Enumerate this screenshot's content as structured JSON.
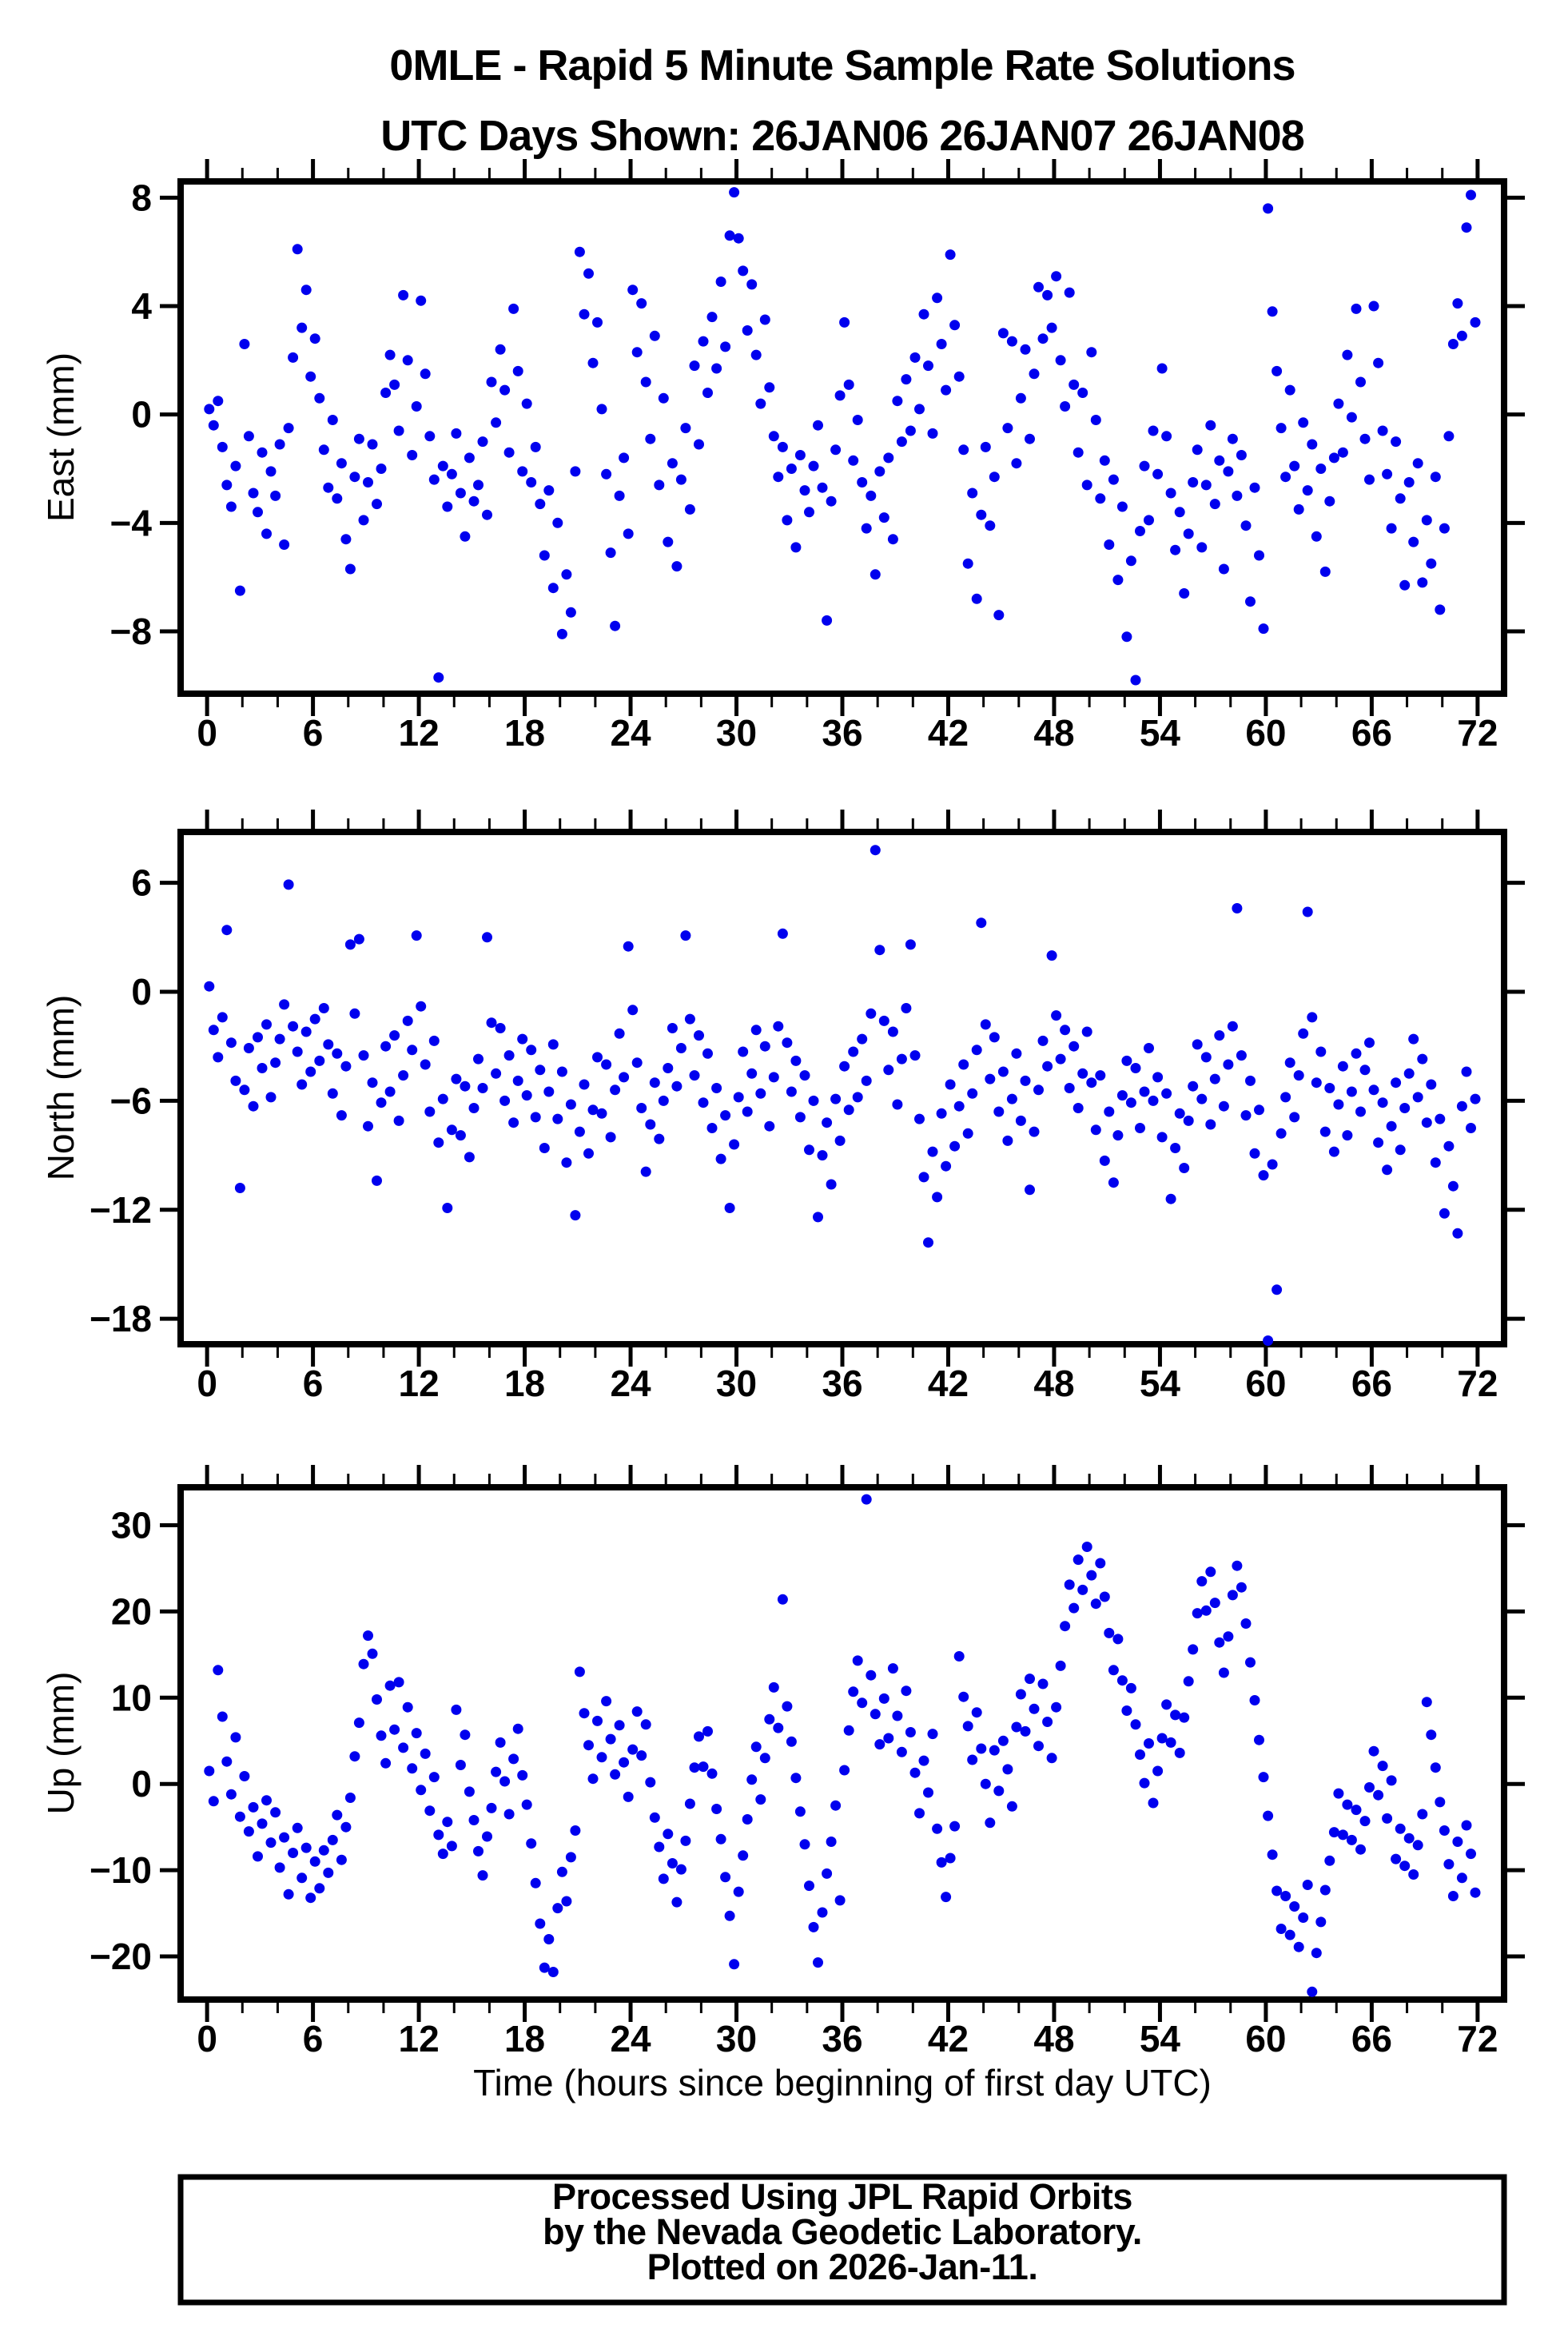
{
  "chart_data": {
    "type": "scatter",
    "title": "0MLE - Rapid 5 Minute Sample Rate Solutions",
    "subtitle": "UTC Days Shown:  26JAN06 26JAN07 26JAN08",
    "xlabel": "Time (hours since beginning of first day UTC)",
    "marker": {
      "color": "#0000EE",
      "radius_px": 6.5
    },
    "grid": false,
    "legend": false,
    "x_axis": {
      "min": 0,
      "max": 72,
      "display_min": -1.5,
      "display_max": 73.5,
      "major_step": 6,
      "minor_step": 2,
      "tick_labels": [
        0,
        6,
        12,
        18,
        24,
        30,
        36,
        42,
        48,
        54,
        60,
        66,
        72
      ]
    },
    "panels": [
      {
        "id": "east",
        "ylabel": "East (mm)",
        "ylim": [
          -10.3,
          8.6
        ],
        "yticks": [
          8,
          4,
          0,
          -4,
          -8
        ],
        "t_start": 0.12,
        "t_step": 0.25,
        "values": [
          0.2,
          -0.4,
          0.5,
          -1.2,
          -2.6,
          -3.4,
          -1.9,
          -6.5,
          2.6,
          -0.8,
          -2.9,
          -3.6,
          -1.4,
          -4.4,
          -2.1,
          -3.0,
          -1.1,
          -4.8,
          -0.5,
          2.1,
          6.1,
          3.2,
          4.6,
          1.4,
          2.8,
          0.6,
          -1.3,
          -2.7,
          -0.2,
          -3.1,
          -1.8,
          -4.6,
          -5.7,
          -2.3,
          -0.9,
          -3.9,
          -2.5,
          -1.1,
          -3.3,
          -2.0,
          0.8,
          2.2,
          1.1,
          -0.6,
          4.4,
          2.0,
          -1.5,
          0.3,
          4.2,
          1.5,
          -0.8,
          -2.4,
          -9.7,
          -1.9,
          -3.4,
          -2.2,
          -0.7,
          -2.9,
          -4.5,
          -1.6,
          -3.2,
          -2.6,
          -1.0,
          -3.7,
          1.2,
          -0.3,
          2.4,
          0.9,
          -1.4,
          3.9,
          1.6,
          -2.1,
          0.4,
          -2.5,
          -1.2,
          -3.3,
          -5.2,
          -2.8,
          -6.4,
          -4.0,
          -8.1,
          -5.9,
          -7.3,
          -2.1,
          6.0,
          3.7,
          5.2,
          1.9,
          3.4,
          0.2,
          -2.2,
          -5.1,
          -7.8,
          -3.0,
          -1.6,
          -4.4,
          4.6,
          2.3,
          4.1,
          1.2,
          -0.9,
          2.9,
          -2.6,
          0.6,
          -4.7,
          -1.8,
          -5.6,
          -2.4,
          -0.5,
          -3.5,
          1.8,
          -1.1,
          2.7,
          0.8,
          3.6,
          1.7,
          4.9,
          2.5,
          6.6,
          8.2,
          6.5,
          5.3,
          3.1,
          4.8,
          2.2,
          0.4,
          3.5,
          1.0,
          -0.8,
          -2.3,
          -1.2,
          -3.9,
          -2.0,
          -4.9,
          -1.5,
          -2.8,
          -3.6,
          -1.9,
          -0.4,
          -2.7,
          -7.6,
          -3.2,
          -1.3,
          0.7,
          3.4,
          1.1,
          -1.7,
          -0.2,
          -2.5,
          -4.2,
          -3.0,
          -5.9,
          -2.1,
          -3.8,
          -1.6,
          -4.6,
          0.5,
          -1.0,
          1.3,
          -0.6,
          2.1,
          0.2,
          3.7,
          1.8,
          -0.7,
          4.3,
          2.6,
          0.9,
          5.9,
          3.3,
          1.4,
          -1.3,
          -5.5,
          -2.9,
          -6.8,
          -3.7,
          -1.2,
          -4.1,
          -2.3,
          -7.4,
          3.0,
          -0.5,
          2.7,
          -1.8,
          0.6,
          2.4,
          -0.9,
          1.5,
          4.7,
          2.8,
          4.4,
          3.2,
          5.1,
          2.0,
          0.3,
          4.5,
          1.1,
          -1.4,
          0.8,
          -2.6,
          2.3,
          -0.2,
          -3.1,
          -1.7,
          -4.8,
          -2.4,
          -6.1,
          -3.4,
          -8.2,
          -5.4,
          -9.8,
          -4.3,
          -1.9,
          -3.9,
          -0.6,
          -2.2,
          1.7,
          -0.8,
          -2.9,
          -5.0,
          -3.6,
          -6.6,
          -4.4,
          -2.5,
          -1.3,
          -4.9,
          -2.6,
          -0.4,
          -3.3,
          -1.7,
          -5.7,
          -2.1,
          -0.9,
          -3.0,
          -1.5,
          -4.1,
          -6.9,
          -2.7,
          -5.2,
          -7.9,
          7.6,
          3.8,
          1.6,
          -0.5,
          -2.3,
          0.9,
          -1.9,
          -3.5,
          -0.3,
          -2.8,
          -1.1,
          -4.5,
          -2.0,
          -5.8,
          -3.2,
          -1.6,
          0.4,
          -1.4,
          2.2,
          -0.1,
          3.9,
          1.2,
          -0.9,
          -2.4,
          4.0,
          1.9,
          -0.6,
          -2.2,
          -4.2,
          -1.0,
          -3.1,
          -6.3,
          -2.5,
          -4.7,
          -1.8,
          -6.2,
          -3.9,
          -5.5,
          -2.3,
          -7.2,
          -4.2,
          -0.8,
          2.6,
          4.1,
          2.9,
          6.9,
          8.1,
          3.4
        ]
      },
      {
        "id": "north",
        "ylabel": "North (mm)",
        "ylim": [
          -19.4,
          8.8
        ],
        "yticks": [
          6,
          0,
          -6,
          -12,
          -18
        ],
        "t_start": 0.12,
        "t_step": 0.25,
        "values": [
          0.3,
          -2.1,
          -3.6,
          -1.4,
          3.4,
          -2.8,
          -4.9,
          -10.8,
          -5.4,
          -3.1,
          -6.3,
          -2.5,
          -4.2,
          -1.8,
          -5.8,
          -3.9,
          -2.6,
          -0.7,
          5.9,
          -1.9,
          -3.3,
          -5.1,
          -2.2,
          -4.4,
          -1.5,
          -3.8,
          -0.9,
          -2.9,
          -5.6,
          -3.4,
          -6.8,
          -4.1,
          2.6,
          -1.2,
          2.9,
          -3.5,
          -7.4,
          -5.0,
          -10.4,
          -6.1,
          -3.0,
          -5.5,
          -2.4,
          -7.1,
          -4.6,
          -1.6,
          -3.2,
          3.1,
          -0.8,
          -4.0,
          -6.6,
          -2.7,
          -8.3,
          -5.9,
          -11.9,
          -7.6,
          -4.8,
          -7.9,
          -5.2,
          -9.1,
          -6.4,
          -3.7,
          -5.3,
          3.0,
          -1.7,
          -4.5,
          -2.0,
          -6.0,
          -3.5,
          -7.2,
          -4.9,
          -2.6,
          -5.7,
          -3.2,
          -6.9,
          -4.3,
          -8.6,
          -5.5,
          -2.9,
          -7.0,
          -4.4,
          -9.4,
          -6.2,
          -12.3,
          -7.7,
          -5.1,
          -8.9,
          -6.5,
          -3.6,
          -6.7,
          -4.0,
          -8.0,
          -5.4,
          -2.3,
          -4.7,
          2.5,
          -1.0,
          -3.9,
          -6.4,
          -9.9,
          -7.3,
          -5.0,
          -8.1,
          -6.0,
          -4.2,
          -2.0,
          -5.2,
          -3.1,
          3.1,
          -1.5,
          -4.6,
          -2.4,
          -6.1,
          -3.4,
          -7.5,
          -5.3,
          -9.2,
          -6.8,
          -11.9,
          -8.4,
          -5.8,
          -3.3,
          -6.6,
          -4.5,
          -2.1,
          -5.6,
          -3.0,
          -7.4,
          -4.7,
          -1.9,
          3.2,
          -2.8,
          -5.5,
          -3.8,
          -6.9,
          -4.6,
          -8.7,
          -6.0,
          -12.4,
          -9.0,
          -7.2,
          -10.6,
          -5.9,
          -8.2,
          -4.1,
          -6.5,
          -3.3,
          -5.8,
          -2.6,
          -4.9,
          -1.2,
          7.8,
          2.3,
          -1.6,
          -4.3,
          -2.2,
          -6.2,
          -3.7,
          -0.9,
          2.6,
          -3.5,
          -7.0,
          -10.2,
          -13.8,
          -8.8,
          -11.3,
          -6.7,
          -9.6,
          -5.1,
          -8.5,
          -6.3,
          -4.0,
          -7.8,
          -5.6,
          -3.2,
          3.8,
          -1.8,
          -4.8,
          -2.5,
          -6.6,
          -4.4,
          -8.2,
          -5.9,
          -3.4,
          -7.1,
          -4.9,
          -10.9,
          -7.7,
          -5.4,
          -2.7,
          -4.1,
          2.0,
          -1.3,
          -3.7,
          -2.1,
          -5.3,
          -3.0,
          -6.4,
          -4.5,
          -2.2,
          -5.0,
          -7.6,
          -4.6,
          -9.3,
          -6.6,
          -10.5,
          -7.9,
          -5.7,
          -3.8,
          -6.1,
          -4.2,
          -7.5,
          -5.5,
          -3.1,
          -6.0,
          -4.7,
          -8.0,
          -5.6,
          -11.4,
          -8.6,
          -6.7,
          -9.7,
          -7.1,
          -5.2,
          -2.9,
          -5.9,
          -3.6,
          -7.3,
          -4.8,
          -2.4,
          -6.3,
          -4.0,
          -1.9,
          4.6,
          -3.5,
          -6.8,
          -4.9,
          -8.9,
          -6.5,
          -10.1,
          -19.2,
          -9.5,
          -16.4,
          -7.8,
          -5.8,
          -3.9,
          -6.9,
          -4.6,
          -2.3,
          4.4,
          -1.4,
          -5.0,
          -3.3,
          -7.7,
          -5.3,
          -8.8,
          -6.2,
          -4.1,
          -7.9,
          -5.5,
          -3.4,
          -6.6,
          -4.3,
          -2.8,
          -5.4,
          -8.3,
          -6.1,
          -9.8,
          -7.4,
          -5.0,
          -8.7,
          -6.4,
          -4.5,
          -2.6,
          -5.8,
          -3.7,
          -7.2,
          -5.1,
          -9.4,
          -7.0,
          -12.2,
          -8.5,
          -10.7,
          -13.3,
          -6.3,
          -4.4,
          -7.5,
          -5.9
        ]
      },
      {
        "id": "up",
        "ylabel": "Up (mm)",
        "ylim": [
          -25.0,
          34.4
        ],
        "yticks": [
          30,
          20,
          10,
          0,
          -10,
          -20
        ],
        "t_start": 0.12,
        "t_step": 0.25,
        "values": [
          1.5,
          -2.0,
          13.2,
          7.8,
          2.6,
          -1.2,
          5.4,
          -3.8,
          0.9,
          -5.5,
          -2.7,
          -8.4,
          -4.6,
          -1.9,
          -6.8,
          -3.3,
          -9.7,
          -6.2,
          -12.8,
          -8.0,
          -5.1,
          -10.9,
          -7.4,
          -13.2,
          -9.0,
          -12.1,
          -7.7,
          -10.3,
          -6.5,
          -3.6,
          -8.8,
          -5.0,
          -1.6,
          3.2,
          7.1,
          13.9,
          17.2,
          15.1,
          9.8,
          5.6,
          2.4,
          11.4,
          6.3,
          11.8,
          4.2,
          8.9,
          1.8,
          5.9,
          -0.7,
          3.5,
          -3.1,
          0.8,
          -5.9,
          -8.1,
          -4.4,
          -7.2,
          8.6,
          2.2,
          5.7,
          -0.9,
          -4.2,
          -7.8,
          -10.6,
          -6.1,
          -2.8,
          1.4,
          4.8,
          0.3,
          -3.5,
          2.9,
          6.4,
          1.0,
          -2.4,
          -6.9,
          -11.5,
          -16.2,
          -21.3,
          -18.0,
          -21.8,
          -14.4,
          -10.2,
          -13.6,
          -8.5,
          -5.4,
          13.0,
          8.2,
          4.5,
          0.6,
          7.3,
          3.1,
          9.6,
          5.2,
          1.1,
          6.8,
          2.5,
          -1.5,
          4.0,
          8.4,
          3.3,
          6.9,
          0.2,
          -3.9,
          -7.3,
          -11.0,
          -5.8,
          -9.2,
          -13.7,
          -9.9,
          -6.6,
          -2.3,
          1.9,
          5.5,
          2.0,
          6.1,
          1.2,
          -2.9,
          -6.4,
          -10.8,
          -15.3,
          -20.9,
          -12.5,
          -8.3,
          -4.1,
          0.5,
          4.3,
          -1.8,
          3.0,
          7.5,
          11.2,
          6.5,
          21.4,
          9.0,
          4.9,
          0.7,
          -3.2,
          -7.0,
          -11.8,
          -16.6,
          -20.7,
          -14.9,
          -10.4,
          -6.7,
          -2.5,
          -13.5,
          1.6,
          6.2,
          10.7,
          14.3,
          9.4,
          33.0,
          12.6,
          8.1,
          4.6,
          9.9,
          5.3,
          13.4,
          7.9,
          3.7,
          10.8,
          6.0,
          1.3,
          -3.4,
          2.7,
          -1.0,
          5.8,
          -5.2,
          -9.1,
          -13.1,
          -8.6,
          -4.9,
          14.8,
          10.1,
          6.7,
          2.8,
          8.3,
          4.1,
          0.0,
          -4.5,
          3.9,
          -0.8,
          5.0,
          1.7,
          -2.6,
          6.6,
          10.4,
          6.1,
          12.2,
          8.7,
          4.4,
          11.6,
          7.2,
          3.0,
          8.9,
          13.7,
          18.3,
          23.1,
          20.4,
          26.0,
          22.5,
          27.5,
          24.2,
          20.9,
          25.6,
          21.7,
          17.5,
          13.2,
          16.8,
          12.0,
          8.5,
          11.1,
          6.9,
          3.4,
          0.1,
          4.7,
          -2.2,
          1.5,
          5.3,
          9.2,
          4.8,
          8.0,
          3.6,
          7.7,
          11.9,
          15.6,
          19.8,
          23.5,
          20.1,
          24.6,
          21.0,
          16.4,
          12.9,
          17.1,
          21.9,
          25.3,
          22.8,
          18.6,
          14.1,
          9.7,
          5.1,
          0.8,
          -3.7,
          -8.2,
          -12.4,
          -16.8,
          -13.0,
          -17.5,
          -14.2,
          -18.9,
          -15.5,
          -11.7,
          -24.1,
          -19.6,
          -16.0,
          -12.3,
          -8.9,
          -5.6,
          -1.1,
          -5.9,
          -2.4,
          -6.5,
          -3.0,
          -7.6,
          -4.3,
          -0.4,
          3.8,
          -1.3,
          2.1,
          -4.0,
          0.4,
          -8.7,
          -5.2,
          -9.5,
          -6.3,
          -10.5,
          -7.1,
          -3.5,
          9.5,
          5.7,
          1.9,
          -2.1,
          -5.4,
          -9.3,
          -13.0,
          -6.7,
          -10.9,
          -4.8,
          -8.1,
          -12.6
        ]
      }
    ]
  },
  "footer": {
    "lines": [
      "Processed Using JPL Rapid Orbits",
      "by the Nevada Geodetic Laboratory.",
      "Plotted on 2026-Jan-11."
    ]
  }
}
